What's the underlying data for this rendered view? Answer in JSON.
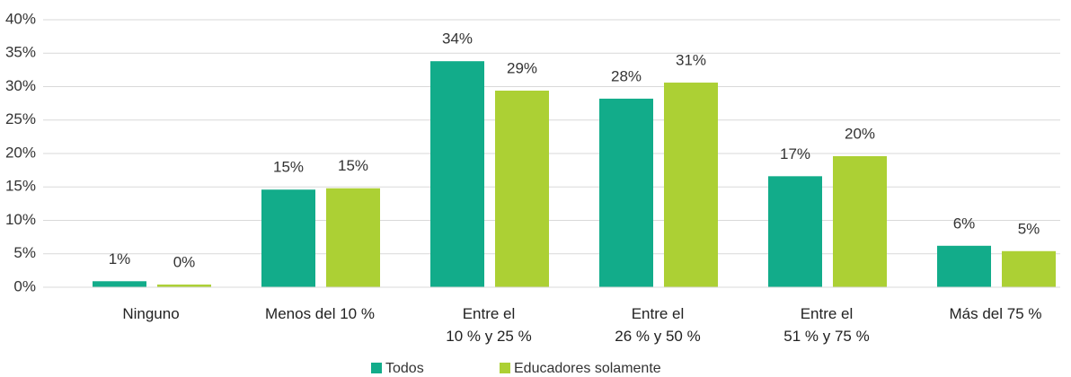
{
  "chart_data": {
    "type": "bar",
    "categories": [
      "Ninguno",
      "Menos del 10 %",
      "Entre el\n10 % y 25 %",
      "Entre el\n26 % y 50 %",
      "Entre el\n51 % y 75 %",
      "Más del 75 %"
    ],
    "series": [
      {
        "name": "Todos",
        "color": "#12ac8a",
        "values": [
          0.9,
          14.6,
          33.8,
          28.2,
          16.6,
          6.2
        ],
        "value_labels": [
          "1%",
          "15%",
          "34%",
          "28%",
          "17%",
          "6%"
        ]
      },
      {
        "name": "Educadores solamente",
        "color": "#acd034",
        "values": [
          0.4,
          14.8,
          29.4,
          30.6,
          19.6,
          5.4
        ],
        "value_labels": [
          "0%",
          "15%",
          "29%",
          "31%",
          "20%",
          "5%"
        ]
      }
    ],
    "ylim": [
      0,
      40
    ],
    "yticks": [
      {
        "value": 0,
        "label": "0%"
      },
      {
        "value": 5,
        "label": "5%"
      },
      {
        "value": 10,
        "label": "10%"
      },
      {
        "value": 15,
        "label": "15%"
      },
      {
        "value": 20,
        "label": "20%"
      },
      {
        "value": 25,
        "label": "25%"
      },
      {
        "value": 30,
        "label": "30%"
      },
      {
        "value": 35,
        "label": "35%"
      },
      {
        "value": 40,
        "label": "40%"
      }
    ],
    "grid": true,
    "legend": "bottom"
  }
}
